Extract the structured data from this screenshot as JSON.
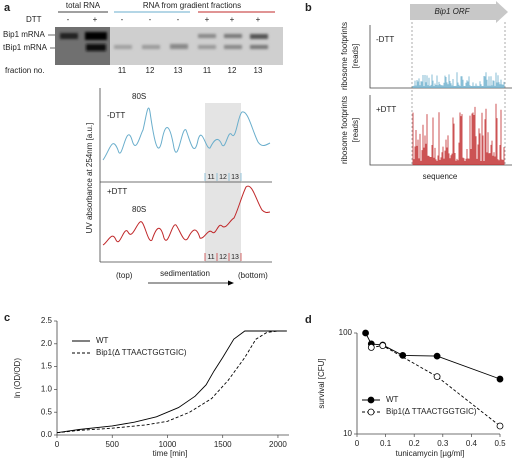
{
  "panel_labels": [
    "a",
    "b",
    "c",
    "d"
  ],
  "panel_a": {
    "total_rna": "total RNA",
    "gradient": "RNA from gradient fractions",
    "dtt": "DTT",
    "dtt_signs": [
      "-",
      "+",
      "-",
      "-",
      "-",
      "+",
      "+",
      "+"
    ],
    "bands": [
      "Bip1 mRNA",
      "tBip1 mRNA"
    ],
    "fraction_label": "fraction no.",
    "fractions": [
      "11",
      "12",
      "13",
      "11",
      "12",
      "13"
    ],
    "trace_labels": [
      "-DTT",
      "+DTT"
    ],
    "peak_label": "80S",
    "trace_fractions": [
      "11",
      "12",
      "13"
    ],
    "y_label": "UV absorbance at 254nm [a.u.]",
    "top": "(top)",
    "sedimentation": "sedimentation",
    "bottom": "(bottom)"
  },
  "panel_b": {
    "orf": "Bip1 ORF",
    "conditions": [
      "-DTT",
      "+DTT"
    ],
    "y_label": "ribosome footprints",
    "y_unit": "[reads]",
    "x_label": "sequence"
  },
  "chart_data": [
    {
      "type": "line",
      "xlabel": "time [min]",
      "ylabel": "ln (OD/OD)",
      "xlim": [
        0,
        2100
      ],
      "ylim": [
        0,
        2.5
      ],
      "xticks": [
        0,
        500,
        1000,
        1500,
        2000
      ],
      "yticks": [
        {
          "value": 0,
          "label": "0.0"
        },
        0.5,
        {
          "value": 1,
          "label": "1.0"
        },
        1.5,
        {
          "value": 2,
          "label": "2.0"
        },
        2.5
      ],
      "legend": "upper left",
      "series": [
        {
          "name": "WT",
          "color": "#000000",
          "dash": "solid",
          "x": [
            0,
            200,
            500,
            700,
            900,
            1100,
            1250,
            1350,
            1420,
            1500,
            1600,
            1700,
            1800,
            2000,
            2080
          ],
          "values": [
            0.05,
            0.12,
            0.2,
            0.28,
            0.4,
            0.6,
            0.85,
            1.1,
            1.4,
            1.7,
            2.1,
            2.28,
            2.28,
            2.28,
            2.28
          ]
        },
        {
          "name": "Bip1(Δ TTAACTGGTGIC)",
          "color": "#000000",
          "dash": "dashed",
          "x": [
            0,
            200,
            500,
            800,
            1000,
            1200,
            1400,
            1550,
            1700,
            1800,
            1900,
            2000,
            2080
          ],
          "values": [
            0.05,
            0.1,
            0.15,
            0.22,
            0.3,
            0.5,
            0.8,
            1.2,
            1.7,
            2.1,
            2.25,
            2.28,
            2.28
          ]
        }
      ]
    },
    {
      "type": "line",
      "log_y": true,
      "xlabel": "tunicamycin [µg/ml]",
      "ylabel": "survival [CFU]",
      "xlim": [
        0,
        0.5
      ],
      "ylim": [
        10,
        100
      ],
      "xticks": [
        0,
        0.1,
        0.2,
        0.3,
        0.4,
        0.5
      ],
      "yticks": [
        10,
        100
      ],
      "legend": "lower left",
      "series": [
        {
          "name": "WT",
          "color": "#000000",
          "dash": "solid",
          "marker": "filled",
          "x": [
            0.03,
            0.05,
            0.09,
            0.16,
            0.28,
            0.5
          ],
          "values": [
            100,
            78,
            76,
            60,
            59,
            35
          ]
        },
        {
          "name": "Bip1(Δ TTAACTGGTGIC)",
          "color": "#000000",
          "dash": "dashed",
          "marker": "open",
          "x": [
            0.05,
            0.09,
            0.28,
            0.5
          ],
          "values": [
            72,
            75,
            37,
            12
          ]
        }
      ]
    }
  ]
}
